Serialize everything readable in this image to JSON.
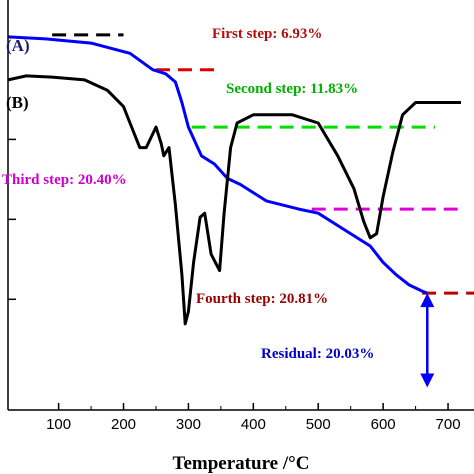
{
  "chart_data": {
    "type": "line",
    "xlabel": "Temperature /°C",
    "ylabel": "",
    "xlim": [
      22,
      740
    ],
    "x_ticks": [
      100,
      200,
      300,
      400,
      500,
      600,
      700
    ],
    "y_ticks_rel": [
      0.27,
      0.465,
      0.66
    ],
    "series": [
      {
        "name": "(A)",
        "color": "#0000ff",
        "points": [
          [
            22,
            0.91
          ],
          [
            80,
            0.905
          ],
          [
            150,
            0.895
          ],
          [
            210,
            0.87
          ],
          [
            245,
            0.83
          ],
          [
            265,
            0.82
          ],
          [
            280,
            0.8
          ],
          [
            290,
            0.75
          ],
          [
            300,
            0.69
          ],
          [
            320,
            0.62
          ],
          [
            340,
            0.6
          ],
          [
            360,
            0.565
          ],
          [
            380,
            0.55
          ],
          [
            420,
            0.51
          ],
          [
            470,
            0.49
          ],
          [
            500,
            0.48
          ],
          [
            540,
            0.44
          ],
          [
            580,
            0.4
          ],
          [
            600,
            0.36
          ],
          [
            620,
            0.33
          ],
          [
            640,
            0.305
          ],
          [
            660,
            0.29
          ],
          [
            668,
            0.285
          ]
        ]
      },
      {
        "name": "(B)",
        "color": "#000000",
        "points": [
          [
            22,
            0.805
          ],
          [
            50,
            0.815
          ],
          [
            90,
            0.812
          ],
          [
            140,
            0.805
          ],
          [
            175,
            0.78
          ],
          [
            200,
            0.74
          ],
          [
            210,
            0.7
          ],
          [
            225,
            0.64
          ],
          [
            235,
            0.64
          ],
          [
            250,
            0.69
          ],
          [
            258,
            0.65
          ],
          [
            262,
            0.62
          ],
          [
            270,
            0.64
          ],
          [
            280,
            0.5
          ],
          [
            290,
            0.33
          ],
          [
            295,
            0.21
          ],
          [
            300,
            0.24
          ],
          [
            308,
            0.36
          ],
          [
            318,
            0.47
          ],
          [
            325,
            0.48
          ],
          [
            335,
            0.38
          ],
          [
            348,
            0.34
          ],
          [
            355,
            0.48
          ],
          [
            365,
            0.64
          ],
          [
            375,
            0.7
          ],
          [
            400,
            0.72
          ],
          [
            460,
            0.72
          ],
          [
            500,
            0.7
          ],
          [
            530,
            0.62
          ],
          [
            555,
            0.54
          ],
          [
            570,
            0.46
          ],
          [
            580,
            0.42
          ],
          [
            590,
            0.43
          ],
          [
            600,
            0.52
          ],
          [
            615,
            0.63
          ],
          [
            630,
            0.72
          ],
          [
            650,
            0.75
          ],
          [
            680,
            0.75
          ],
          [
            720,
            0.75
          ]
        ]
      }
    ],
    "annotations": [
      {
        "text": "(A)",
        "color": "#1c1c7a"
      },
      {
        "text": "(B)",
        "color": "#000000"
      },
      {
        "text": "First step: 6.93%",
        "color": "#b01010"
      },
      {
        "text": "Second step: 11.83%",
        "color": "#00b000"
      },
      {
        "text": "Third step: 20.40%",
        "color": "#cc00cc"
      },
      {
        "text": "Fourth step: 20.81%",
        "color": "#990000"
      },
      {
        "text": "Residual: 20.03%",
        "color": "#0000cc"
      }
    ],
    "step_lines": [
      {
        "color": "#000000",
        "x": [
          90,
          200
        ],
        "y": 0.915
      },
      {
        "color": "#dd0000",
        "x": [
          250,
          340
        ],
        "y": 0.83
      },
      {
        "color": "#00dd00",
        "x": [
          305,
          680
        ],
        "y": 0.69
      },
      {
        "color": "#dd00dd",
        "x": [
          490,
          720
        ],
        "y": 0.49
      },
      {
        "color": "#bb0000",
        "x": [
          660,
          740
        ],
        "y": 0.285
      }
    ],
    "residual_arrow": {
      "color": "#0000ff",
      "x": 668,
      "y_top": 0.285,
      "y_bottom": 0.055
    }
  }
}
